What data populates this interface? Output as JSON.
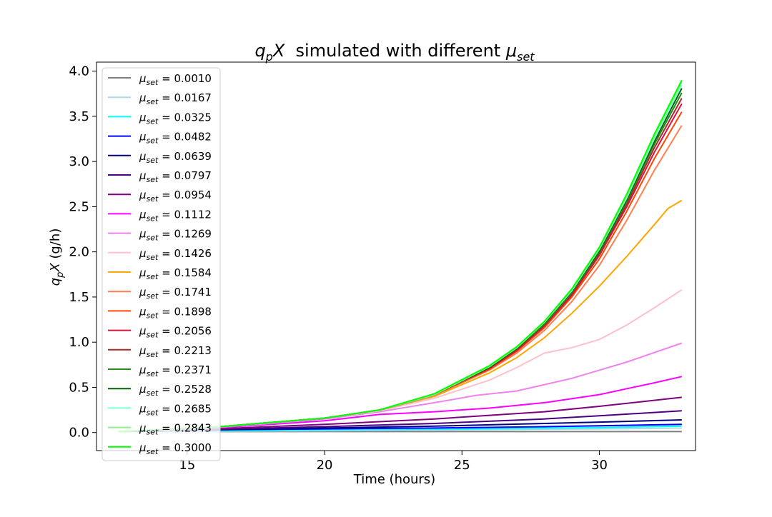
{
  "chart_data": {
    "type": "line",
    "title": {
      "math_main": "q",
      "math_sub": "p",
      "math_var": "X",
      "text": "  simulated with different ",
      "mu": "μ",
      "mu_sub": "set"
    },
    "xlabel": "Time (hours)",
    "ylabel": {
      "math_main": "q",
      "math_sub": "p",
      "math_var": "X",
      "unit": " (g/h)"
    },
    "xlim": [
      11.7,
      33.5
    ],
    "ylim": [
      -0.2,
      4.1
    ],
    "xticks": [
      15,
      20,
      25,
      30
    ],
    "yticks": [
      0.0,
      0.5,
      1.0,
      1.5,
      2.0,
      2.5,
      3.0,
      3.5,
      4.0
    ],
    "ytick_labels": [
      "0.0",
      "0.5",
      "1.0",
      "1.5",
      "2.0",
      "2.5",
      "3.0",
      "3.5",
      "4.0"
    ],
    "grid": false,
    "legend_position": "upper-left",
    "legend_symbol": "μ",
    "legend_sub": "set",
    "legend_eq": " = ",
    "series": [
      {
        "name": "0.0010",
        "color": "#808080",
        "x": [
          12.5,
          33.0
        ],
        "y": [
          0.01,
          0.01
        ]
      },
      {
        "name": "0.0167",
        "color": "#add8e6",
        "x": [
          12.5,
          20,
          25,
          30,
          33.0
        ],
        "y": [
          0.01,
          0.02,
          0.03,
          0.04,
          0.05
        ]
      },
      {
        "name": "0.0325",
        "color": "#00ffff",
        "x": [
          12.5,
          20,
          25,
          30,
          33.0
        ],
        "y": [
          0.01,
          0.03,
          0.04,
          0.055,
          0.07
        ]
      },
      {
        "name": "0.0482",
        "color": "#0000ff",
        "x": [
          12.5,
          16,
          20,
          24,
          28,
          30,
          33.0
        ],
        "y": [
          0.01,
          0.03,
          0.04,
          0.05,
          0.065,
          0.075,
          0.09
        ]
      },
      {
        "name": "0.0639",
        "color": "#000080",
        "x": [
          12.5,
          16,
          20,
          24,
          28,
          30,
          33.0
        ],
        "y": [
          0.01,
          0.03,
          0.05,
          0.07,
          0.1,
          0.115,
          0.14
        ]
      },
      {
        "name": "0.0797",
        "color": "#4b0082",
        "x": [
          12.5,
          16,
          20,
          24,
          28,
          30,
          33.0
        ],
        "y": [
          0.01,
          0.035,
          0.065,
          0.1,
          0.15,
          0.185,
          0.24
        ]
      },
      {
        "name": "0.0954",
        "color": "#800080",
        "x": [
          12.5,
          16,
          20,
          24,
          28,
          30,
          33.0
        ],
        "y": [
          0.01,
          0.04,
          0.09,
          0.15,
          0.23,
          0.29,
          0.39
        ]
      },
      {
        "name": "0.1112",
        "color": "#ff00ff",
        "x": [
          12.5,
          16,
          20,
          22,
          24,
          26,
          28,
          30,
          32,
          33.0
        ],
        "y": [
          0.01,
          0.05,
          0.13,
          0.2,
          0.23,
          0.27,
          0.33,
          0.42,
          0.55,
          0.62
        ]
      },
      {
        "name": "0.1269",
        "color": "#ee82ee",
        "x": [
          12.5,
          16,
          18,
          20,
          22,
          24,
          25.5,
          27,
          29,
          31,
          33.0
        ],
        "y": [
          0.01,
          0.055,
          0.1,
          0.15,
          0.23,
          0.33,
          0.41,
          0.46,
          0.6,
          0.78,
          0.99
        ]
      },
      {
        "name": "0.1426",
        "color": "#ffc0cb",
        "x": [
          12.5,
          16,
          18,
          20,
          22,
          24,
          26,
          27,
          28,
          29,
          30,
          31,
          32,
          33.0
        ],
        "y": [
          0.01,
          0.06,
          0.11,
          0.16,
          0.24,
          0.38,
          0.58,
          0.72,
          0.88,
          0.94,
          1.03,
          1.19,
          1.38,
          1.58
        ]
      },
      {
        "name": "0.1584",
        "color": "#ffa500",
        "x": [
          12.5,
          16,
          18,
          20,
          22,
          24,
          26,
          27,
          28,
          29,
          30,
          31,
          32,
          32.5,
          33.0
        ],
        "y": [
          0.01,
          0.06,
          0.11,
          0.16,
          0.25,
          0.4,
          0.66,
          0.83,
          1.05,
          1.32,
          1.62,
          1.95,
          2.3,
          2.48,
          2.57
        ]
      },
      {
        "name": "0.1741",
        "color": "#ff7f50",
        "x": [
          12.5,
          16,
          18,
          20,
          22,
          24,
          26,
          27,
          28,
          29,
          30,
          31,
          32,
          33.0
        ],
        "y": [
          0.01,
          0.06,
          0.11,
          0.16,
          0.25,
          0.41,
          0.69,
          0.88,
          1.13,
          1.45,
          1.85,
          2.35,
          2.9,
          3.4
        ]
      },
      {
        "name": "0.1898",
        "color": "#ff4500",
        "x": [
          12.5,
          16,
          18,
          20,
          22,
          24,
          26,
          27,
          28,
          29,
          30,
          31,
          32,
          33.0
        ],
        "y": [
          0.01,
          0.06,
          0.11,
          0.16,
          0.25,
          0.42,
          0.7,
          0.9,
          1.16,
          1.5,
          1.92,
          2.45,
          3.03,
          3.55
        ]
      },
      {
        "name": "0.2056",
        "color": "#dc143c",
        "x": [
          12.5,
          16,
          18,
          20,
          22,
          24,
          26,
          27,
          28,
          29,
          30,
          31,
          32,
          33.0
        ],
        "y": [
          0.01,
          0.06,
          0.11,
          0.16,
          0.25,
          0.42,
          0.71,
          0.91,
          1.18,
          1.52,
          1.96,
          2.5,
          3.1,
          3.64
        ]
      },
      {
        "name": "0.2213",
        "color": "#a52a2a",
        "x": [
          12.5,
          16,
          18,
          20,
          22,
          24,
          26,
          27,
          28,
          29,
          30,
          31,
          32,
          33.0
        ],
        "y": [
          0.01,
          0.06,
          0.11,
          0.16,
          0.25,
          0.42,
          0.72,
          0.92,
          1.19,
          1.54,
          1.98,
          2.53,
          3.15,
          3.7
        ]
      },
      {
        "name": "0.2371",
        "color": "#228b22",
        "x": [
          12.5,
          16,
          18,
          20,
          22,
          24,
          26,
          27,
          28,
          29,
          30,
          31,
          32,
          33.0
        ],
        "y": [
          0.01,
          0.06,
          0.11,
          0.16,
          0.25,
          0.42,
          0.72,
          0.93,
          1.2,
          1.55,
          2.0,
          2.56,
          3.19,
          3.76
        ]
      },
      {
        "name": "0.2528",
        "color": "#006400",
        "x": [
          12.5,
          16,
          18,
          20,
          22,
          24,
          26,
          27,
          28,
          29,
          30,
          31,
          32,
          33.0
        ],
        "y": [
          0.01,
          0.06,
          0.11,
          0.16,
          0.25,
          0.42,
          0.72,
          0.93,
          1.21,
          1.56,
          2.01,
          2.58,
          3.22,
          3.81
        ]
      },
      {
        "name": "0.2685",
        "color": "#7fffd4",
        "x": [
          12.5,
          16,
          18,
          20,
          22,
          24,
          26,
          27,
          28,
          29,
          30,
          31,
          32,
          33.0
        ],
        "y": [
          0.01,
          0.06,
          0.11,
          0.16,
          0.25,
          0.42,
          0.73,
          0.94,
          1.22,
          1.57,
          2.03,
          2.6,
          3.25,
          3.85
        ]
      },
      {
        "name": "0.2843",
        "color": "#90ee90",
        "x": [
          12.5,
          16,
          18,
          20,
          22,
          24,
          26,
          27,
          28,
          29,
          30,
          31,
          32,
          33.0
        ],
        "y": [
          0.01,
          0.06,
          0.11,
          0.16,
          0.25,
          0.42,
          0.73,
          0.94,
          1.22,
          1.58,
          2.04,
          2.62,
          3.28,
          3.88
        ]
      },
      {
        "name": "0.3000",
        "color": "#00ff00",
        "x": [
          12.5,
          16,
          18,
          20,
          22,
          24,
          26,
          27,
          28,
          29,
          30,
          31,
          32,
          33.0
        ],
        "y": [
          0.01,
          0.06,
          0.11,
          0.16,
          0.25,
          0.43,
          0.74,
          0.95,
          1.23,
          1.59,
          2.05,
          2.64,
          3.3,
          3.9
        ]
      }
    ]
  }
}
